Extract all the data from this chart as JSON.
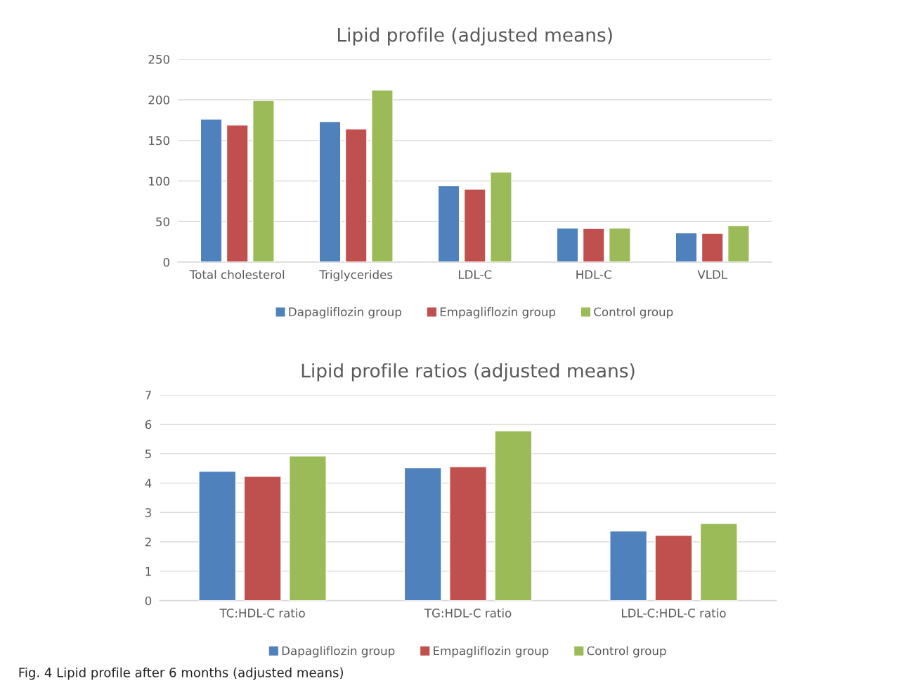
{
  "chart_data": [
    {
      "type": "bar",
      "title": "Lipid profile (adjusted means)",
      "categories": [
        "Total cholesterol",
        "Triglycerides",
        "LDL-C",
        "HDL-C",
        "VLDL"
      ],
      "series": [
        {
          "name": "Dapagliflozin group",
          "color": "#4f81bd",
          "values": [
            176,
            173,
            94,
            42,
            36
          ]
        },
        {
          "name": "Empagliflozin group",
          "color": "#c0504d",
          "values": [
            169,
            164,
            90,
            41.5,
            35.5
          ]
        },
        {
          "name": "Control group",
          "color": "#9bbb59",
          "values": [
            199,
            212,
            111,
            42,
            45
          ]
        }
      ],
      "ylim": [
        0,
        250
      ],
      "yticks": [
        0,
        50,
        100,
        150,
        200,
        250
      ],
      "grid": "y",
      "legend": "bottom"
    },
    {
      "type": "bar",
      "title": "Lipid profile ratios (adjusted means)",
      "categories": [
        "TC:HDL-C ratio",
        "TG:HDL-C ratio",
        "LDL-C:HDL-C ratio"
      ],
      "series": [
        {
          "name": "Dapagliflozin group",
          "color": "#4f81bd",
          "values": [
            4.4,
            4.52,
            2.37
          ]
        },
        {
          "name": "Empagliflozin group",
          "color": "#c0504d",
          "values": [
            4.23,
            4.56,
            2.22
          ]
        },
        {
          "name": "Control group",
          "color": "#9bbb59",
          "values": [
            4.92,
            5.78,
            2.63
          ]
        }
      ],
      "ylim": [
        0,
        7
      ],
      "yticks": [
        0,
        1,
        2,
        3,
        4,
        5,
        6,
        7
      ],
      "grid": "y",
      "legend": "bottom",
      "annotations": [
        "Fig. 4 Lipid profile after 6 months (adjusted means)"
      ]
    }
  ]
}
